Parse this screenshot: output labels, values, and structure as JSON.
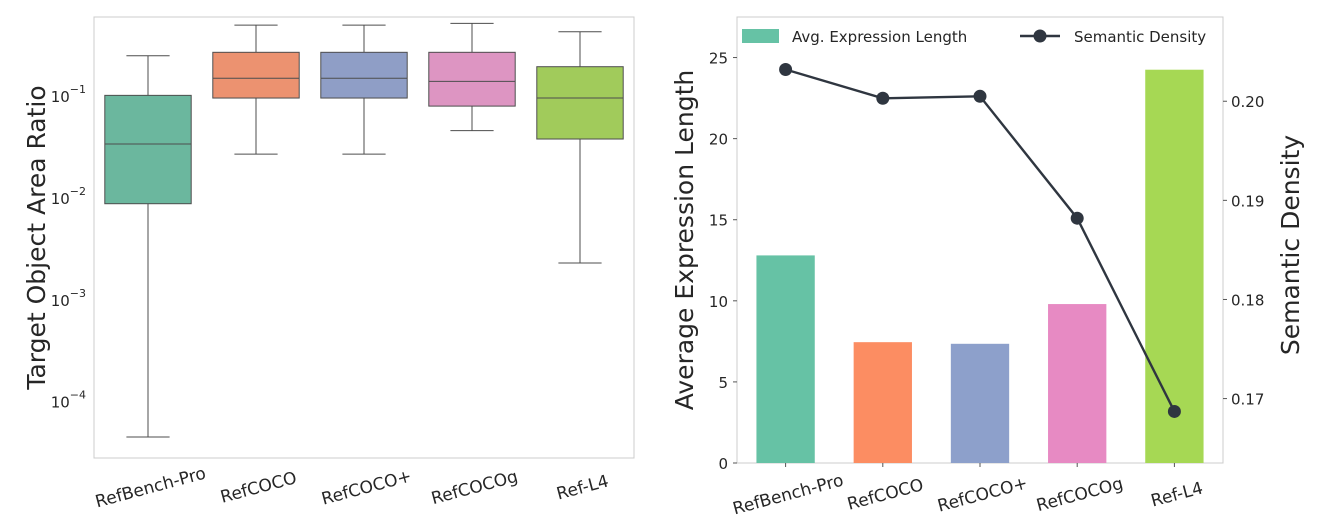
{
  "chart_data": [
    {
      "type": "box",
      "ylabel": "Target Object Area Ratio",
      "yscale": "log",
      "ylim": [
        2.8e-05,
        0.6
      ],
      "y_ticks": [
        {
          "value": 0.0001,
          "base": "10",
          "exp": "−4"
        },
        {
          "value": 0.001,
          "base": "10",
          "exp": "−3"
        },
        {
          "value": 0.01,
          "base": "10",
          "exp": "−2"
        },
        {
          "value": 0.1,
          "base": "10",
          "exp": "−1"
        }
      ],
      "grid": false,
      "categories": [
        "RefBench-Pro",
        "RefCOCO",
        "RefCOCO+",
        "RefCOCOg",
        "Ref-L4"
      ],
      "boxes": [
        {
          "whisker_low": 4.5e-05,
          "q1": 0.0088,
          "median": 0.034,
          "q3": 0.102,
          "whisker_high": 0.25,
          "color": "#6bb79e"
        },
        {
          "whisker_low": 0.027,
          "q1": 0.096,
          "median": 0.15,
          "q3": 0.27,
          "whisker_high": 0.5,
          "color": "#ec9270"
        },
        {
          "whisker_low": 0.027,
          "q1": 0.096,
          "median": 0.15,
          "q3": 0.27,
          "whisker_high": 0.5,
          "color": "#8f9ec6"
        },
        {
          "whisker_low": 0.046,
          "q1": 0.08,
          "median": 0.14,
          "q3": 0.27,
          "whisker_high": 0.52,
          "color": "#dd95c2"
        },
        {
          "whisker_low": 0.0023,
          "q1": 0.038,
          "median": 0.096,
          "q3": 0.195,
          "whisker_high": 0.43,
          "color": "#a1cb5b"
        }
      ]
    },
    {
      "type": "bar+line",
      "categories": [
        "RefBench-Pro",
        "RefCOCO",
        "RefCOCO+",
        "RefCOCOg",
        "Ref-L4"
      ],
      "ylabel": "Average Expression Length",
      "ylim": [
        0,
        27.5
      ],
      "y_ticks": [
        0,
        5,
        10,
        15,
        20,
        25
      ],
      "y2label": "Semantic Density",
      "y2lim": [
        0.1635,
        0.2085
      ],
      "y2_ticks": [
        0.17,
        0.18,
        0.19,
        0.2
      ],
      "grid": false,
      "legend_placement": "top",
      "series": [
        {
          "name": "Avg. Expression Length",
          "kind": "bar",
          "axis": "left",
          "values": [
            12.8,
            7.45,
            7.35,
            9.8,
            24.25
          ],
          "colors": [
            "#66c2a5",
            "#fc8d62",
            "#8da0cb",
            "#e78ac3",
            "#a6d854"
          ],
          "legend_color": "#66c2a5"
        },
        {
          "name": "Semantic Density",
          "kind": "line",
          "axis": "right",
          "values": [
            0.2032,
            0.2003,
            0.2005,
            0.1882,
            0.1687
          ],
          "color": "#2f3640"
        }
      ]
    }
  ]
}
